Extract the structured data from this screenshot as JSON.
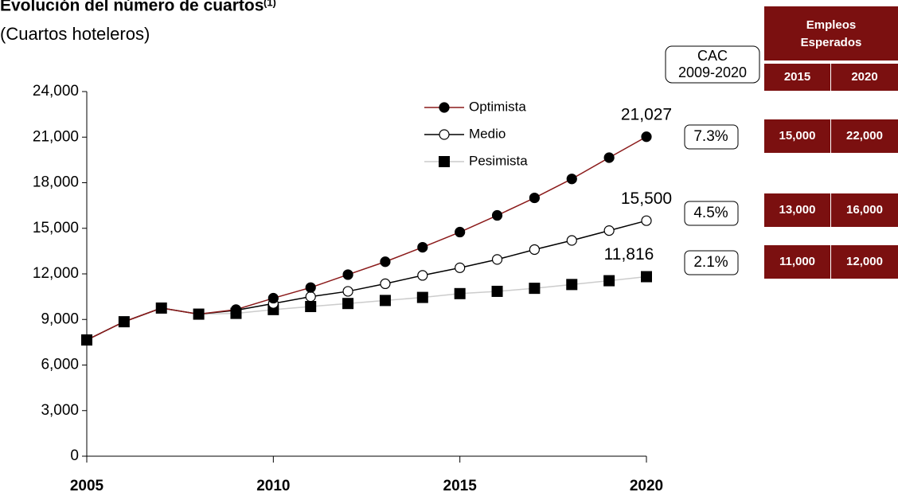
{
  "chart_data": {
    "type": "line",
    "title": "Evolución del número de cuartos",
    "title_note": "(1)",
    "subtitle": "(Cuartos hoteleros)",
    "x": [
      2005,
      2006,
      2007,
      2008,
      2009,
      2010,
      2011,
      2012,
      2013,
      2014,
      2015,
      2016,
      2017,
      2018,
      2019,
      2020
    ],
    "xlim": [
      2005,
      2020
    ],
    "xticks": [
      2005,
      2010,
      2015,
      2020
    ],
    "ylim": [
      0,
      24000
    ],
    "yticks": [
      0,
      {
        "value": 3000,
        "label": "3,000"
      },
      {
        "value": 6000,
        "label": "6,000"
      },
      {
        "value": 9000,
        "label": "9,000"
      },
      {
        "value": 12000,
        "label": "12,000"
      },
      {
        "value": 15000,
        "label": "15,000"
      },
      {
        "value": 18000,
        "label": "18,000"
      },
      {
        "value": 21000,
        "label": "21,000"
      },
      {
        "value": 24000,
        "label": "24,000"
      }
    ],
    "series": [
      {
        "name": "Optimista",
        "color": "#8b1a1a",
        "marker": "circle",
        "marker_fill": "#000000",
        "values": [
          7650,
          8850,
          9750,
          9350,
          9650,
          10400,
          11100,
          11950,
          12800,
          13750,
          14750,
          15850,
          17000,
          18250,
          19650,
          21027
        ],
        "value_labels": [
          null,
          null,
          null,
          null,
          null,
          null,
          null,
          null,
          null,
          null,
          null,
          null,
          null,
          null,
          null,
          "21,027"
        ]
      },
      {
        "name": "Medio",
        "color": "#000000",
        "marker": "circle",
        "marker_fill": "#ffffff",
        "values": [
          7650,
          8850,
          9750,
          9350,
          9600,
          10050,
          10500,
          10850,
          11350,
          11900,
          12400,
          12950,
          13600,
          14200,
          14850,
          15500
        ],
        "value_labels": [
          null,
          null,
          null,
          null,
          null,
          null,
          null,
          null,
          null,
          null,
          null,
          null,
          null,
          null,
          null,
          "15,500"
        ]
      },
      {
        "name": "Pesimista",
        "color": "#cccccc",
        "marker": "square",
        "marker_fill": "#000000",
        "values": [
          7650,
          8850,
          9750,
          9350,
          9400,
          9650,
          9850,
          10050,
          10250,
          10450,
          10700,
          10850,
          11050,
          11300,
          11550,
          11816
        ],
        "value_labels": [
          null,
          null,
          null,
          null,
          null,
          null,
          null,
          null,
          null,
          null,
          null,
          null,
          null,
          null,
          null,
          "11,816"
        ]
      }
    ],
    "cac": {
      "title": [
        "CAC",
        "2009-2020"
      ],
      "values": [
        7.3,
        4.5,
        2.1
      ],
      "labels": [
        "7.3%",
        "4.5%",
        "2.1%"
      ]
    }
  },
  "table": {
    "title": [
      "Empleos",
      "Esperados"
    ],
    "columns": [
      "2015",
      "2020"
    ],
    "rows": [
      [
        "15,000",
        "22,000"
      ],
      [
        "13,000",
        "16,000"
      ],
      [
        "11,000",
        "12,000"
      ]
    ]
  }
}
